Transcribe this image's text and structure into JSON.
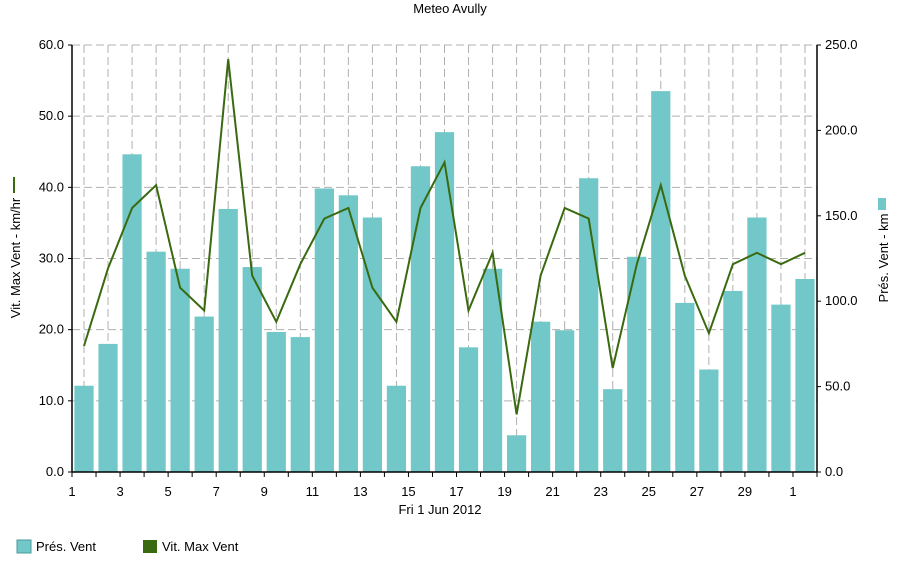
{
  "chart_data": {
    "type": "bar",
    "title": "Meteo  Avully",
    "xlabel": "Fri 1 Jun 2012",
    "ylabel_left": "Vit. Max Vent - km/hr",
    "ylabel_right": "Prés. Vent - km",
    "ylim_left": [
      0,
      60
    ],
    "ylim_right": [
      0,
      250
    ],
    "y_left_ticks": [
      "0.0",
      "10.0",
      "20.0",
      "30.0",
      "40.0",
      "50.0",
      "60.0"
    ],
    "y_right_ticks": [
      "0.0",
      "50.0",
      "100.0",
      "150.0",
      "200.0",
      "250.0"
    ],
    "x_tick_labels": [
      "1",
      "3",
      "5",
      "7",
      "9",
      "11",
      "13",
      "15",
      "17",
      "19",
      "21",
      "23",
      "25",
      "27",
      "29",
      "1"
    ],
    "grid": true,
    "legend_position": "bottom-left",
    "colors": {
      "bar": "#72c8c8",
      "line": "#3a6a10",
      "grid": "#b0b0b0"
    },
    "series": [
      {
        "name": "Prés. Vent",
        "type": "bar",
        "axis": "right",
        "values": [
          50.5,
          75,
          186,
          129,
          119,
          91,
          154,
          120,
          82,
          79,
          166,
          162,
          149,
          50.5,
          179,
          199,
          73,
          119,
          21.5,
          88,
          83,
          172,
          48.5,
          126,
          223,
          99,
          60,
          106,
          149,
          98,
          113
        ]
      },
      {
        "name": "Vit. Max Vent",
        "type": "line",
        "axis": "left",
        "values": [
          17.7,
          28.6,
          37.1,
          40.3,
          25.9,
          22.7,
          58.0,
          27.6,
          21.1,
          29.2,
          35.6,
          37.1,
          25.9,
          21.1,
          37.1,
          43.5,
          22.7,
          30.8,
          8.1,
          27.6,
          37.1,
          35.6,
          14.6,
          29.2,
          40.3,
          27.6,
          19.5,
          29.2,
          30.8,
          29.2,
          30.8
        ]
      }
    ]
  },
  "legend": [
    {
      "label": "Prés. Vent"
    },
    {
      "label": "Vit. Max Vent"
    }
  ]
}
